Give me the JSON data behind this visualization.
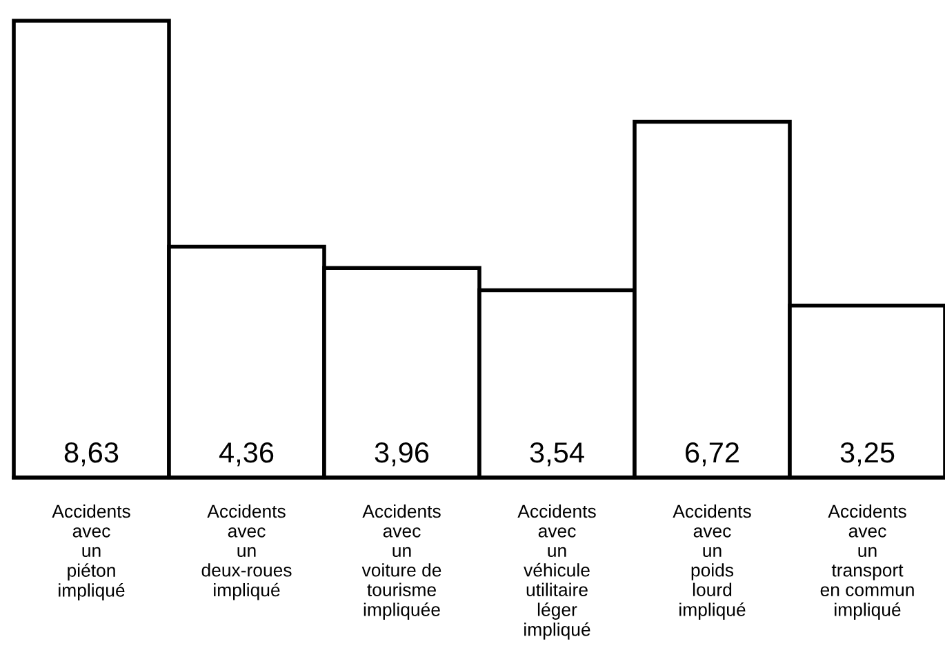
{
  "chart_data": {
    "type": "bar",
    "categories": [
      "Accidents\navec\nun\npiéton\nimpliqué",
      "Accidents\navec\nun\ndeux-roues\nimpliqué",
      "Accidents\navec\nun\nvoiture de\ntourisme\nimpliquée",
      "Accidents\navec\nun\nvéhicule\nutilitaire\nléger\nimpliqué",
      "Accidents\navec\nun\npoids\nlourd\nimpliqué",
      "Accidents\navec\nun\ntransport\nen commun\nimpliqué"
    ],
    "values": [
      8.63,
      4.36,
      3.96,
      3.54,
      6.72,
      3.25
    ],
    "value_labels": [
      "8,63",
      "4,36",
      "3,96",
      "3,54",
      "6,72",
      "3,25"
    ],
    "color": "#ffffff"
  }
}
